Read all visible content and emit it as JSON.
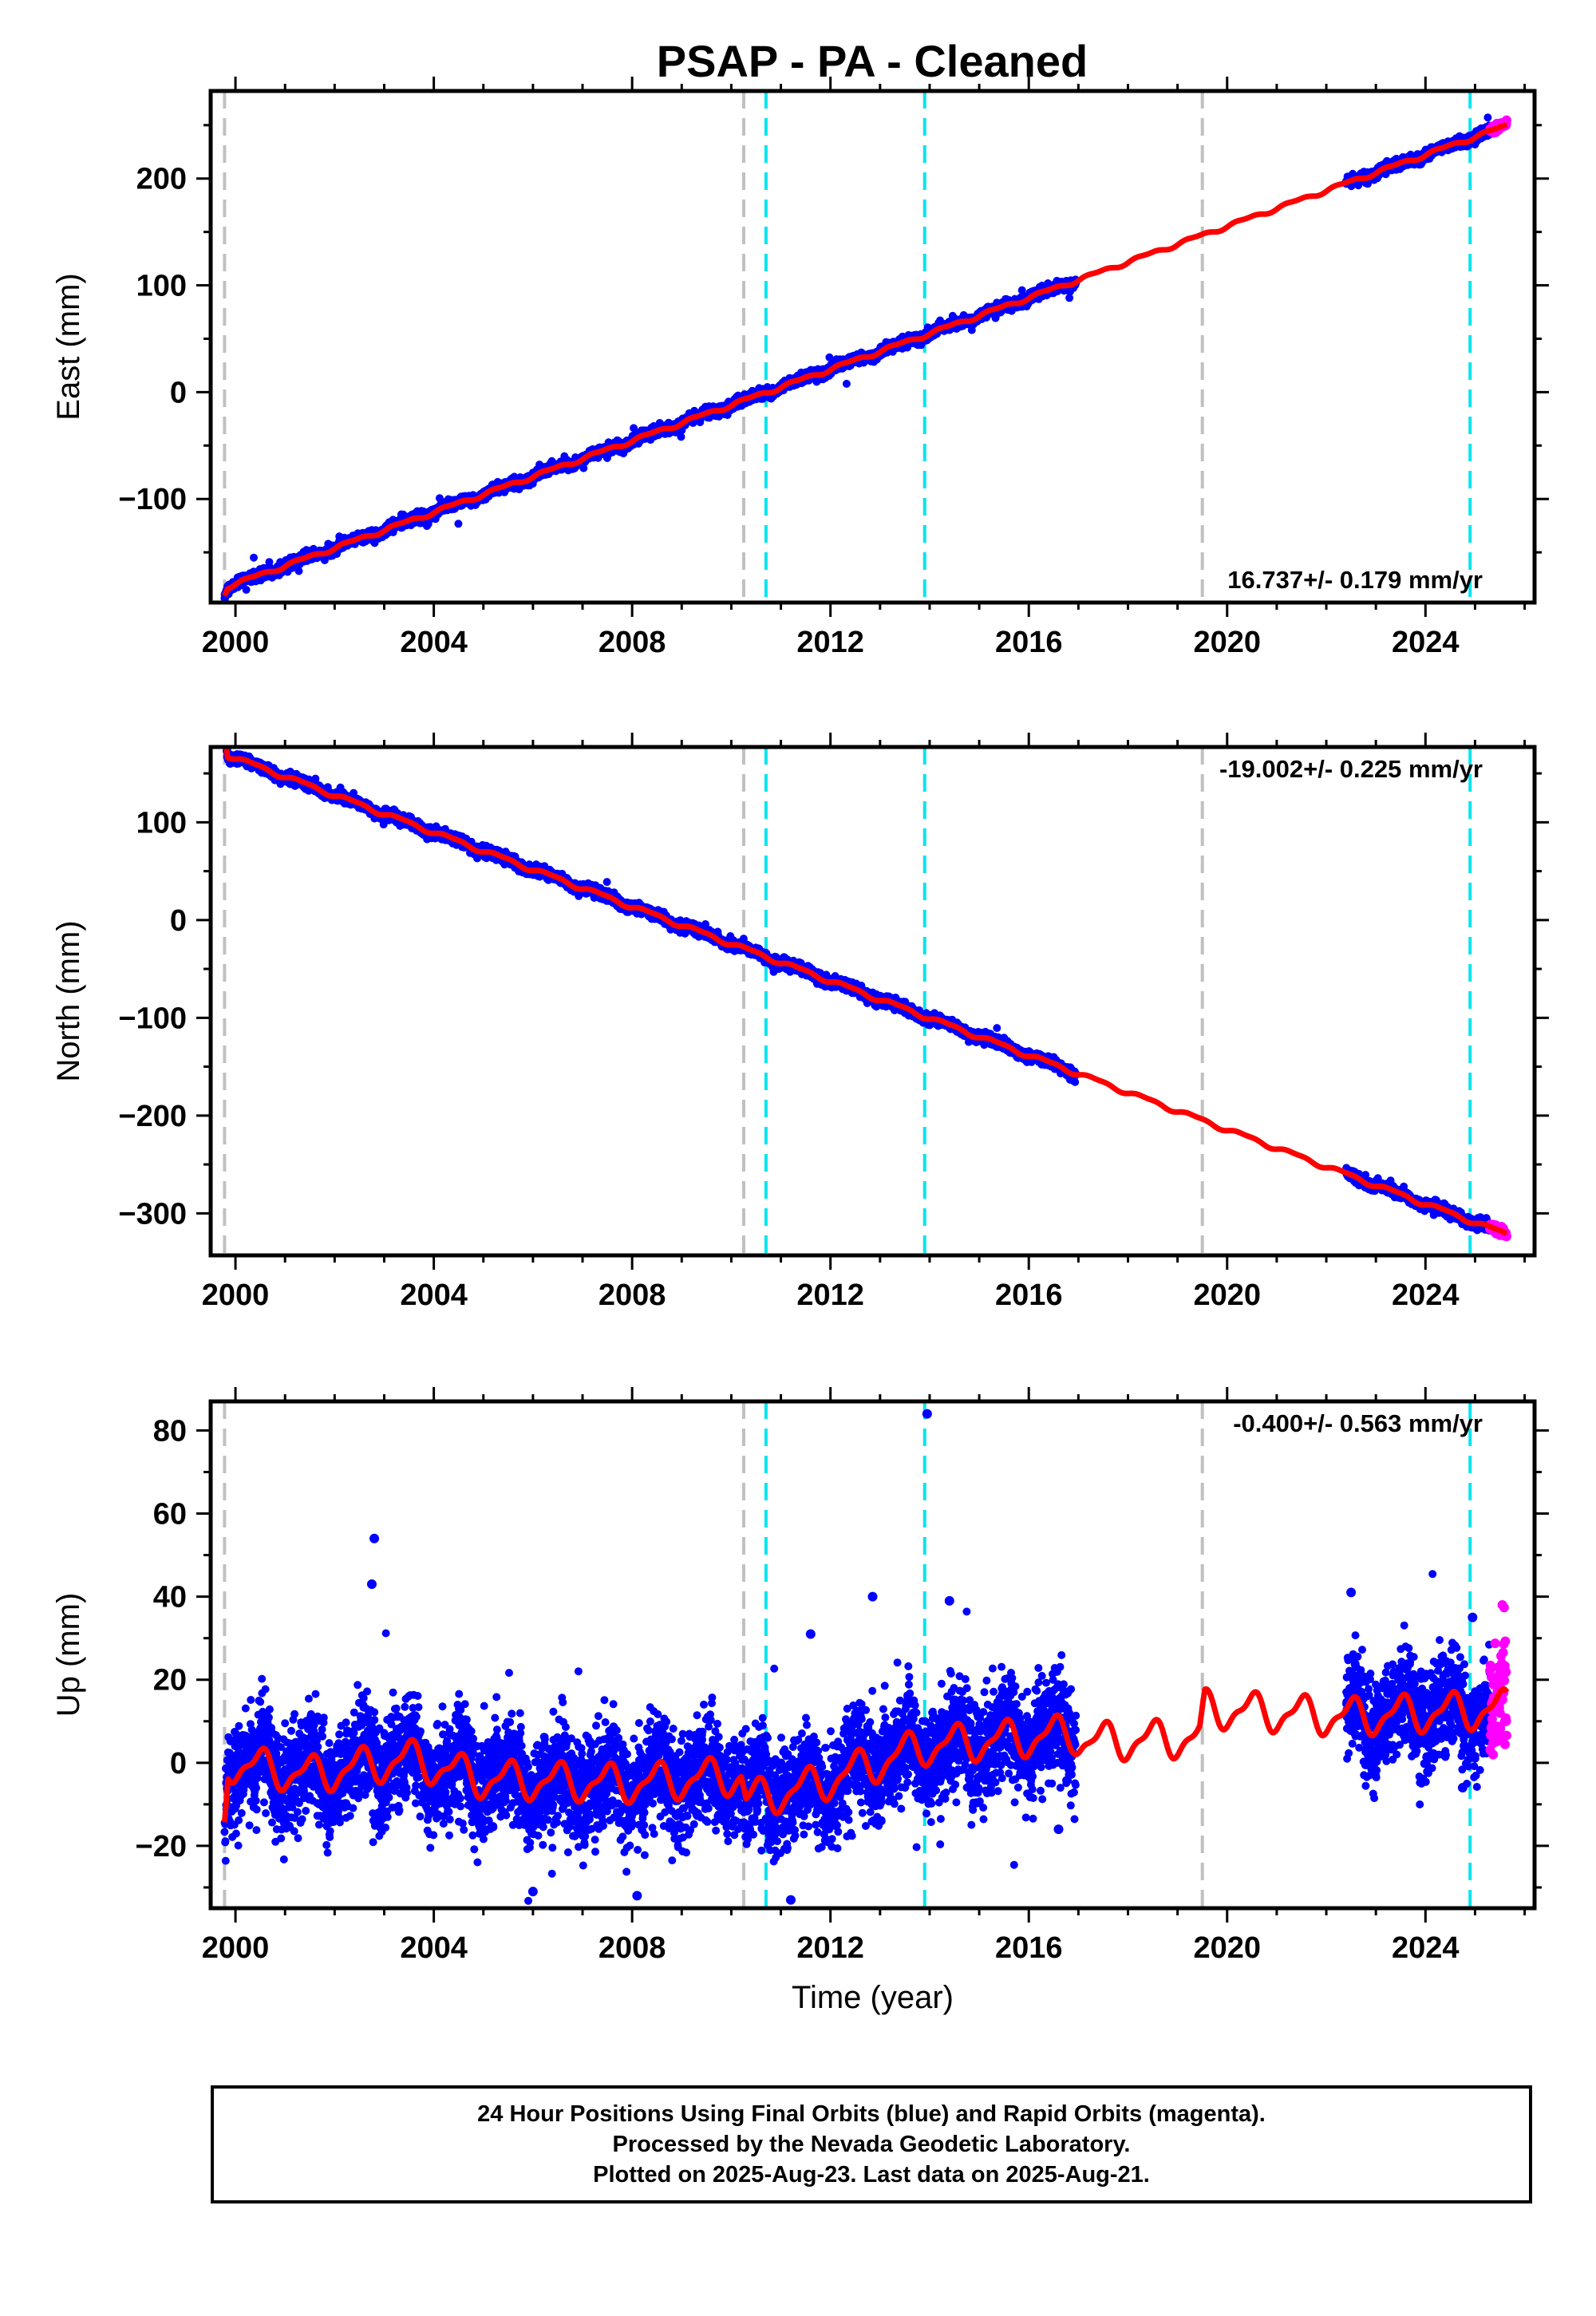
{
  "title": "PSAP  - PA - Cleaned",
  "footer": {
    "line1": "24 Hour Positions Using Final Orbits (blue) and Rapid Orbits (magenta).",
    "line2": "Processed by the Nevada Geodetic Laboratory.",
    "line3": "Plotted on 2025-Aug-23. Last data on 2025-Aug-21."
  },
  "colors": {
    "final_orbits": "#0000ff",
    "rapid_orbits": "#ff00ff",
    "model": "#ff0000",
    "equipment_change": "#c0c0c0",
    "earthquake": "#00e5ee"
  },
  "chart_data": [
    {
      "type": "scatter",
      "name": "east",
      "ylabel": "East (mm)",
      "xlabel": "",
      "xlim": [
        1999.5,
        2026.2
      ],
      "ylim": [
        -197,
        282
      ],
      "xticks": [
        2000,
        2004,
        2008,
        2012,
        2016,
        2020,
        2024
      ],
      "xtick_labels": [
        "2000",
        "2004",
        "2008",
        "2012",
        "2016",
        "2020",
        "2024"
      ],
      "yticks": [
        -100,
        0,
        100,
        200
      ],
      "ytick_labels": [
        "−100",
        "0",
        "100",
        "200"
      ],
      "rate_label": "16.737+/- 0.179 mm/yr",
      "rate_position": "bottom-right",
      "gray_lines": [
        1999.78,
        2010.25,
        2019.5
      ],
      "cyan_lines": [
        2010.7,
        2013.9,
        2024.9
      ],
      "segments": [
        [
          1999.78,
          2016.95
        ],
        [
          2022.4,
          2025.3
        ]
      ],
      "rapid_range": [
        2025.3,
        2025.64
      ],
      "model_start": 1999.78,
      "model_end": 2025.64,
      "y_start": -183,
      "rate": 16.737,
      "jump_at_start": 6,
      "annual_amp": 1.5,
      "noise": 2.2,
      "outlier_rate": 0.01
    },
    {
      "type": "scatter",
      "name": "north",
      "ylabel": "North (mm)",
      "xlabel": "",
      "xlim": [
        1999.5,
        2026.2
      ],
      "ylim": [
        -343,
        177
      ],
      "xticks": [
        2000,
        2004,
        2008,
        2012,
        2016,
        2020,
        2024
      ],
      "xtick_labels": [
        "2000",
        "2004",
        "2008",
        "2012",
        "2016",
        "2020",
        "2024"
      ],
      "yticks": [
        -300,
        -200,
        -100,
        0,
        100
      ],
      "ytick_labels": [
        "−300",
        "−200",
        "−100",
        "0",
        "100"
      ],
      "rate_label": "-19.002+/- 0.225 mm/yr",
      "rate_position": "top-right",
      "gray_lines": [
        1999.78,
        2010.25,
        2019.5
      ],
      "cyan_lines": [
        2010.7,
        2013.9,
        2024.9
      ],
      "segments": [
        [
          1999.78,
          2016.95
        ],
        [
          2022.4,
          2025.3
        ]
      ],
      "rapid_range": [
        2025.3,
        2025.64
      ],
      "model_start": 1999.78,
      "model_end": 2025.64,
      "y_start": 170,
      "rate": -19.002,
      "jump_at_start": -28,
      "annual_amp": 2.0,
      "noise": 2.5,
      "outlier_rate": 0.005
    },
    {
      "type": "scatter",
      "name": "up",
      "ylabel": "Up (mm)",
      "xlabel": "Time (year)",
      "xlim": [
        1999.5,
        2026.2
      ],
      "ylim": [
        -35,
        87
      ],
      "xticks": [
        2000,
        2004,
        2008,
        2012,
        2016,
        2020,
        2024
      ],
      "xtick_labels": [
        "2000",
        "2004",
        "2008",
        "2012",
        "2016",
        "2020",
        "2024"
      ],
      "yticks": [
        -20,
        0,
        20,
        40,
        60,
        80
      ],
      "ytick_labels": [
        "−20",
        "0",
        "20",
        "40",
        "60",
        "80"
      ],
      "rate_label": "-0.400+/- 0.563 mm/yr",
      "rate_position": "top-right",
      "gray_lines": [
        1999.78,
        2010.25,
        2019.5
      ],
      "cyan_lines": [
        2010.7,
        2013.9,
        2024.9
      ],
      "segments": [
        [
          1999.78,
          2016.95
        ],
        [
          2022.4,
          2025.3
        ]
      ],
      "rapid_range": [
        2025.3,
        2025.64
      ],
      "model_start": 1999.78,
      "model_end": 2025.64,
      "model_shape": [
        [
          1999.78,
          -13
        ],
        [
          1999.85,
          0
        ],
        [
          2001.5,
          -3
        ],
        [
          2003.5,
          1
        ],
        [
          2005,
          -4
        ],
        [
          2008,
          -5
        ],
        [
          2010.2,
          -3
        ],
        [
          2010.3,
          -9
        ],
        [
          2011.5,
          -6
        ],
        [
          2013.9,
          4
        ],
        [
          2016.9,
          7
        ],
        [
          2017.2,
          5
        ],
        [
          2019.45,
          6
        ],
        [
          2019.55,
          13
        ],
        [
          2022.4,
          11
        ],
        [
          2025.6,
          13
        ]
      ],
      "annual_amp": 4.0,
      "noise": 6.0,
      "outlier_rate": 0.01,
      "outliers": [
        [
          2002.8,
          54
        ],
        [
          2002.75,
          43
        ],
        [
          2013.95,
          84
        ],
        [
          2012.85,
          40
        ],
        [
          2014.4,
          39
        ],
        [
          2011.6,
          31
        ],
        [
          2022.5,
          41
        ],
        [
          2008.1,
          -32
        ],
        [
          2011.2,
          -33
        ],
        [
          2006.0,
          -31
        ],
        [
          2016.6,
          -16
        ],
        [
          2024.75,
          -6
        ],
        [
          2025.55,
          38
        ],
        [
          2024.95,
          35
        ]
      ]
    }
  ]
}
